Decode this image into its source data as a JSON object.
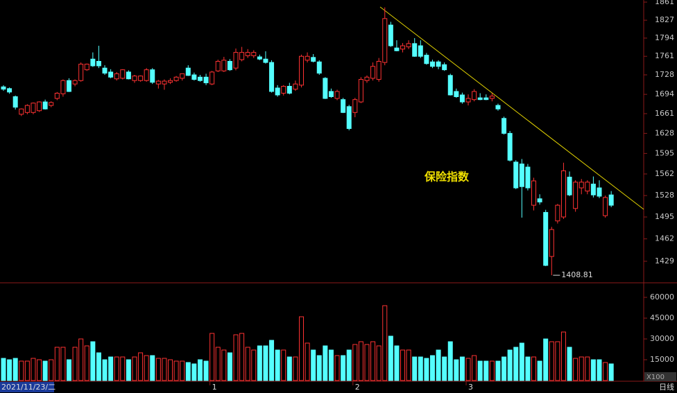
{
  "chart_data": {
    "type": "candlestick",
    "title": "保险指数",
    "categories": [
      "2021/11/23/二",
      null,
      null,
      null,
      null,
      null,
      null,
      null,
      null,
      null,
      null,
      null,
      null,
      null,
      null,
      null,
      null,
      null,
      null,
      null,
      null,
      null,
      null,
      null,
      null,
      null,
      null,
      null,
      null,
      null,
      null,
      null,
      null,
      null,
      null,
      "1",
      null,
      null,
      null,
      null,
      null,
      null,
      null,
      null,
      null,
      null,
      null,
      null,
      null,
      null,
      null,
      null,
      null,
      null,
      null,
      null,
      null,
      null,
      null,
      "2",
      null,
      null,
      null,
      null,
      null,
      null,
      null,
      null,
      null,
      null,
      null,
      null,
      null,
      null,
      null,
      null,
      null,
      null,
      "3",
      null,
      null,
      null,
      null,
      null,
      null,
      null,
      null,
      null,
      null,
      null,
      null,
      null,
      null,
      null,
      null,
      null,
      null,
      null,
      null,
      null,
      null,
      null,
      null
    ],
    "open": [
      1707,
      1704,
      1690,
      1660,
      1663,
      1663,
      1666,
      1681,
      1675,
      1687,
      1695,
      1718,
      1712,
      1718,
      1737,
      1756,
      1752,
      1740,
      1733,
      1721,
      1722,
      1733,
      1718,
      1718,
      1718,
      1737,
      1712,
      1712,
      1715,
      1718,
      1722,
      1740,
      1728,
      1724,
      1724,
      1712,
      1735,
      1735,
      1752,
      1740,
      1755,
      1762,
      1762,
      1760,
      1756,
      1750,
      1705,
      1696,
      1708,
      1703,
      1710,
      1754,
      1759,
      1751,
      1722,
      1699,
      1687,
      1685,
      1673,
      1663,
      1681,
      1718,
      1722,
      1720,
      1750,
      1818,
      1776,
      1774,
      1778,
      1784,
      1780,
      1763,
      1751,
      1751,
      1746,
      1727,
      1699,
      1693,
      1681,
      1685,
      1688,
      1688,
      1687,
      1675,
      1653,
      1628,
      1581,
      1578,
      1573,
      1513,
      1523,
      1502,
      1436,
      1489,
      1495,
      1557,
      1508,
      1540,
      1535,
      1546,
      1540,
      1497,
      1529
    ],
    "high": [
      1710,
      1706,
      1692,
      1670,
      1677,
      1680,
      1682,
      1685,
      1682,
      1698,
      1720,
      1722,
      1720,
      1750,
      1748,
      1768,
      1780,
      1745,
      1738,
      1733,
      1738,
      1736,
      1728,
      1727,
      1740,
      1740,
      1719,
      1720,
      1722,
      1726,
      1730,
      1745,
      1732,
      1728,
      1730,
      1735,
      1755,
      1760,
      1756,
      1775,
      1778,
      1774,
      1772,
      1764,
      1770,
      1754,
      1710,
      1710,
      1714,
      1718,
      1764,
      1768,
      1765,
      1754,
      1724,
      1704,
      1702,
      1688,
      1676,
      1688,
      1724,
      1727,
      1750,
      1758,
      1851,
      1824,
      1790,
      1785,
      1790,
      1794,
      1790,
      1767,
      1755,
      1754,
      1750,
      1730,
      1704,
      1697,
      1694,
      1703,
      1696,
      1694,
      1696,
      1678,
      1656,
      1632,
      1584,
      1586,
      1578,
      1556,
      1530,
      1506,
      1480,
      1515,
      1580,
      1566,
      1552,
      1554,
      1552,
      1558,
      1552,
      1528,
      1535
    ],
    "low": [
      1700,
      1695,
      1668,
      1657,
      1660,
      1660,
      1664,
      1668,
      1672,
      1684,
      1690,
      1698,
      1708,
      1716,
      1735,
      1742,
      1740,
      1728,
      1722,
      1718,
      1720,
      1720,
      1714,
      1716,
      1716,
      1712,
      1704,
      1702,
      1712,
      1716,
      1718,
      1726,
      1718,
      1716,
      1710,
      1710,
      1733,
      1733,
      1735,
      1736,
      1752,
      1758,
      1758,
      1754,
      1748,
      1697,
      1690,
      1692,
      1694,
      1700,
      1706,
      1750,
      1750,
      1728,
      1686,
      1688,
      1684,
      1662,
      1633,
      1655,
      1679,
      1714,
      1718,
      1716,
      1745,
      1778,
      1770,
      1768,
      1774,
      1760,
      1758,
      1746,
      1740,
      1738,
      1735,
      1692,
      1688,
      1678,
      1675,
      1682,
      1684,
      1684,
      1682,
      1666,
      1626,
      1582,
      1538,
      1494,
      1536,
      1505,
      1514,
      1422,
      1408.81,
      1485,
      1492,
      1527,
      1503,
      1530,
      1530,
      1525,
      1524,
      1494,
      1510
    ],
    "close": [
      1703,
      1698,
      1672,
      1669,
      1675,
      1679,
      1681,
      1669,
      1680,
      1696,
      1718,
      1699,
      1718,
      1747,
      1747,
      1744,
      1744,
      1731,
      1724,
      1730,
      1737,
      1721,
      1726,
      1726,
      1737,
      1715,
      1717,
      1717,
      1718,
      1724,
      1730,
      1727,
      1720,
      1718,
      1714,
      1733,
      1752,
      1754,
      1737,
      1768,
      1768,
      1768,
      1768,
      1756,
      1750,
      1699,
      1693,
      1708,
      1696,
      1712,
      1761,
      1761,
      1752,
      1731,
      1687,
      1690,
      1699,
      1663,
      1636,
      1685,
      1720,
      1724,
      1743,
      1752,
      1830,
      1780,
      1771,
      1780,
      1784,
      1761,
      1761,
      1748,
      1743,
      1743,
      1737,
      1693,
      1690,
      1681,
      1687,
      1699,
      1685,
      1685,
      1691,
      1669,
      1628,
      1584,
      1540,
      1542,
      1540,
      1551,
      1518,
      1423,
      1476,
      1513,
      1567,
      1529,
      1549,
      1549,
      1549,
      1529,
      1527,
      1525,
      1513
    ],
    "volume": [
      16000,
      15000,
      16000,
      14000,
      14000,
      16000,
      15000,
      14000,
      15000,
      24000,
      24000,
      15000,
      24000,
      30000,
      25000,
      28000,
      20000,
      15000,
      17000,
      17000,
      17000,
      15000,
      17000,
      20000,
      18000,
      18000,
      16000,
      16000,
      15000,
      14000,
      14000,
      13000,
      12000,
      15000,
      14000,
      34000,
      24000,
      22000,
      20000,
      33000,
      34000,
      24000,
      22000,
      25000,
      25000,
      29000,
      22000,
      22000,
      17000,
      17000,
      46000,
      27000,
      22000,
      18000,
      25000,
      22000,
      18000,
      18000,
      22000,
      26000,
      28000,
      26000,
      28000,
      25000,
      54000,
      32000,
      25000,
      22000,
      22000,
      17000,
      17000,
      16000,
      18000,
      22000,
      17000,
      28000,
      15000,
      17000,
      16000,
      18000,
      14000,
      14000,
      14000,
      14000,
      17000,
      22000,
      24000,
      27000,
      17000,
      17000,
      14000,
      30000,
      28000,
      28000,
      35000,
      24000,
      16000,
      17000,
      17000,
      15000,
      15000,
      13000,
      12000
    ],
    "up_color": "#ff3232",
    "down_color": "#54ffff",
    "log_scale": true,
    "ylim": [
      1398,
      1865
    ],
    "yticks": [
      1861,
      1827,
      1794,
      1761,
      1728,
      1694,
      1661,
      1628,
      1595,
      1562,
      1528,
      1495,
      1462,
      1429
    ],
    "volume_ylim": [
      0,
      69500
    ],
    "volume_yticks": [
      60000,
      45000,
      30000,
      15000
    ],
    "volume_unit": "X100",
    "period": "日线"
  }
}
